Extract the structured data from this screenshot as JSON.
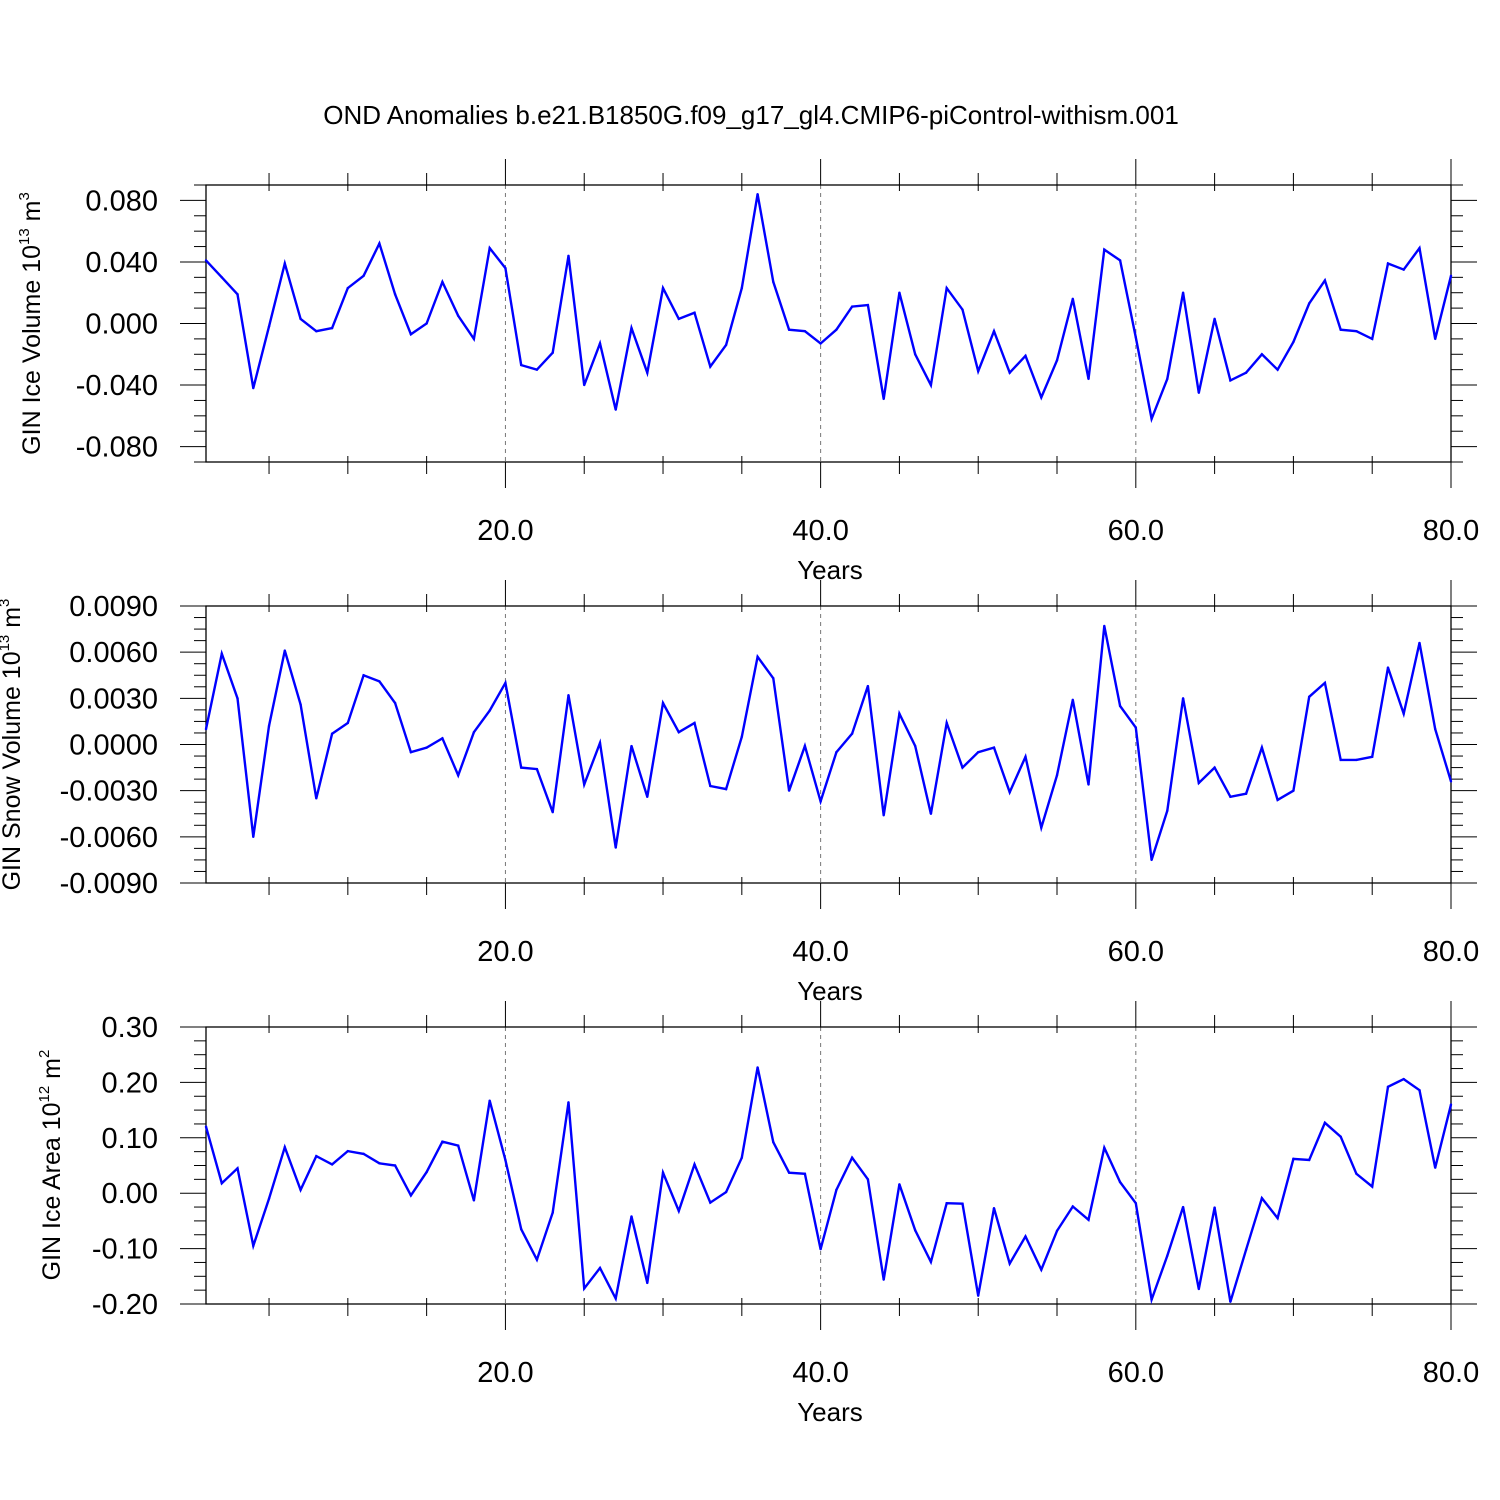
{
  "page": {
    "title": "OND Anomalies b.e21.B1850G.f09_g17_gl4.CMIP6-piControl-withism.001"
  },
  "chart_data": [
    {
      "type": "line",
      "ylabel_text": "GIN Ice Volume 10",
      "ylabel_exp": "13",
      "ylabel_unit": " m",
      "ylabel_unit_exp": "3",
      "xlabel": "Years",
      "xlim": [
        1,
        80
      ],
      "ylim": [
        -0.09,
        0.09
      ],
      "xticks": [
        20,
        40,
        60,
        80
      ],
      "xtick_labels": [
        "20.0",
        "40.0",
        "60.0",
        "80.0"
      ],
      "yticks": [
        0.08,
        0.04,
        0.0,
        -0.04,
        -0.08
      ],
      "ytick_labels": [
        "0.080",
        "0.040",
        "0.000",
        "-0.040",
        "-0.080"
      ],
      "grid": "dashed vertical at 20, 40, 60",
      "line_color": "#0000ff",
      "x": [
        1,
        2,
        3,
        4,
        5,
        6,
        7,
        8,
        9,
        10,
        11,
        12,
        13,
        14,
        15,
        16,
        17,
        18,
        19,
        20,
        21,
        22,
        23,
        24,
        25,
        26,
        27,
        28,
        29,
        30,
        31,
        32,
        33,
        34,
        35,
        36,
        37,
        38,
        39,
        40,
        41,
        42,
        43,
        44,
        45,
        46,
        47,
        48,
        49,
        50,
        51,
        52,
        53,
        54,
        55,
        56,
        57,
        58,
        59,
        60,
        61,
        62,
        63,
        64,
        65,
        66,
        67,
        68,
        69,
        70,
        71,
        72,
        73,
        74,
        75,
        76,
        77,
        78,
        79,
        80
      ],
      "values": [
        0.041,
        0.03,
        0.019,
        -0.042,
        -0.002,
        0.039,
        0.003,
        -0.005,
        -0.003,
        0.023,
        0.031,
        0.052,
        0.019,
        -0.007,
        0.0,
        0.027,
        0.005,
        -0.01,
        0.049,
        0.036,
        -0.027,
        -0.03,
        -0.019,
        0.044,
        -0.04,
        -0.013,
        -0.056,
        -0.003,
        -0.032,
        0.023,
        0.003,
        0.007,
        -0.028,
        -0.014,
        0.023,
        0.084,
        0.027,
        -0.004,
        -0.005,
        -0.013,
        -0.004,
        0.011,
        0.012,
        -0.049,
        0.02,
        -0.02,
        -0.04,
        0.023,
        0.009,
        -0.031,
        -0.005,
        -0.032,
        -0.021,
        -0.048,
        -0.024,
        0.016,
        -0.036,
        0.048,
        0.041,
        -0.009,
        -0.062,
        -0.036,
        0.02,
        -0.045,
        0.003,
        -0.037,
        -0.032,
        -0.02,
        -0.03,
        -0.012,
        0.013,
        0.028,
        -0.004,
        -0.005,
        -0.01,
        0.039,
        0.035,
        0.049,
        -0.01,
        0.031
      ]
    },
    {
      "type": "line",
      "ylabel_text": "GIN Snow Volume 10",
      "ylabel_exp": "13",
      "ylabel_unit": " m",
      "ylabel_unit_exp": "3",
      "xlabel": "Years",
      "xlim": [
        1,
        80
      ],
      "ylim": [
        -0.009,
        0.009
      ],
      "xticks": [
        20,
        40,
        60,
        80
      ],
      "xtick_labels": [
        "20.0",
        "40.0",
        "60.0",
        "80.0"
      ],
      "yticks": [
        0.009,
        0.006,
        0.003,
        0.0,
        -0.003,
        -0.006,
        -0.009
      ],
      "ytick_labels": [
        "0.0090",
        "0.0060",
        "0.0030",
        "0.0000",
        "-0.0030",
        "-0.0060",
        "-0.0090"
      ],
      "grid": "dashed vertical at 20, 40, 60",
      "line_color": "#0000ff",
      "x": [
        1,
        2,
        3,
        4,
        5,
        6,
        7,
        8,
        9,
        10,
        11,
        12,
        13,
        14,
        15,
        16,
        17,
        18,
        19,
        20,
        21,
        22,
        23,
        24,
        25,
        26,
        27,
        28,
        29,
        30,
        31,
        32,
        33,
        34,
        35,
        36,
        37,
        38,
        39,
        40,
        41,
        42,
        43,
        44,
        45,
        46,
        47,
        48,
        49,
        50,
        51,
        52,
        53,
        54,
        55,
        56,
        57,
        58,
        59,
        60,
        61,
        62,
        63,
        64,
        65,
        66,
        67,
        68,
        69,
        70,
        71,
        72,
        73,
        74,
        75,
        76,
        77,
        78,
        79,
        80
      ],
      "values": [
        0.001,
        0.0059,
        0.003,
        -0.006,
        0.0012,
        0.0061,
        0.0026,
        -0.0035,
        0.0007,
        0.0014,
        0.0045,
        0.0041,
        0.0027,
        -0.0005,
        -0.0002,
        0.0004,
        -0.002,
        0.0008,
        0.0022,
        0.004,
        -0.0015,
        -0.0016,
        -0.0044,
        0.0032,
        -0.0026,
        0.0001,
        -0.0067,
        -0.0001,
        -0.0034,
        0.0027,
        0.0008,
        0.0014,
        -0.0027,
        -0.0029,
        0.0005,
        0.0057,
        0.0043,
        -0.003,
        -0.0001,
        -0.0037,
        -0.0005,
        0.0007,
        0.0038,
        -0.0046,
        0.002,
        -0.0001,
        -0.0045,
        0.0014,
        -0.0015,
        -0.0005,
        -0.0002,
        -0.0031,
        -0.0008,
        -0.0054,
        -0.002,
        0.0029,
        -0.0026,
        0.0077,
        0.0025,
        0.0011,
        -0.0075,
        -0.0043,
        0.003,
        -0.0025,
        -0.0015,
        -0.0034,
        -0.0032,
        -0.0002,
        -0.0036,
        -0.003,
        0.0031,
        0.004,
        -0.001,
        -0.001,
        -0.0008,
        0.005,
        0.002,
        0.0066,
        0.001,
        -0.0024
      ]
    },
    {
      "type": "line",
      "ylabel_text": "GIN Ice Area 10",
      "ylabel_exp": "12",
      "ylabel_unit": " m",
      "ylabel_unit_exp": "2",
      "xlabel": "Years",
      "xlim": [
        1,
        80
      ],
      "ylim": [
        -0.2,
        0.3
      ],
      "xticks": [
        20,
        40,
        60,
        80
      ],
      "xtick_labels": [
        "20.0",
        "40.0",
        "60.0",
        "80.0"
      ],
      "yticks": [
        0.3,
        0.2,
        0.1,
        0.0,
        -0.1,
        -0.2
      ],
      "ytick_labels": [
        "0.30",
        "0.20",
        "0.10",
        "0.00",
        "-0.10",
        "-0.20"
      ],
      "grid": "dashed vertical at 20, 40, 60",
      "line_color": "#0000ff",
      "x": [
        1,
        2,
        3,
        4,
        5,
        6,
        7,
        8,
        9,
        10,
        11,
        12,
        13,
        14,
        15,
        16,
        17,
        18,
        19,
        20,
        21,
        22,
        23,
        24,
        25,
        26,
        27,
        28,
        29,
        30,
        31,
        32,
        33,
        34,
        35,
        36,
        37,
        38,
        39,
        40,
        41,
        42,
        43,
        44,
        45,
        46,
        47,
        48,
        49,
        50,
        51,
        52,
        53,
        54,
        55,
        56,
        57,
        58,
        59,
        60,
        61,
        62,
        63,
        64,
        65,
        66,
        67,
        68,
        69,
        70,
        71,
        72,
        73,
        74,
        75,
        76,
        77,
        78,
        79,
        80
      ],
      "values": [
        0.12,
        0.018,
        0.045,
        -0.095,
        -0.01,
        0.083,
        0.006,
        0.067,
        0.052,
        0.076,
        0.071,
        0.054,
        0.05,
        -0.004,
        0.038,
        0.093,
        0.086,
        -0.013,
        0.167,
        0.06,
        -0.065,
        -0.12,
        -0.035,
        0.164,
        -0.172,
        -0.135,
        -0.19,
        -0.042,
        -0.162,
        0.037,
        -0.032,
        0.052,
        -0.017,
        0.002,
        0.064,
        0.227,
        0.092,
        0.037,
        0.035,
        -0.101,
        0.006,
        0.064,
        0.025,
        -0.156,
        0.016,
        -0.067,
        -0.124,
        -0.018,
        -0.019,
        -0.185,
        -0.027,
        -0.127,
        -0.078,
        -0.138,
        -0.068,
        -0.024,
        -0.048,
        0.082,
        0.02,
        -0.018,
        -0.192,
        -0.113,
        -0.025,
        -0.173,
        -0.026,
        -0.196,
        -0.102,
        -0.009,
        -0.045,
        0.062,
        0.06,
        0.127,
        0.102,
        0.035,
        0.012,
        0.192,
        0.206,
        0.186,
        0.046,
        0.16
      ]
    }
  ]
}
